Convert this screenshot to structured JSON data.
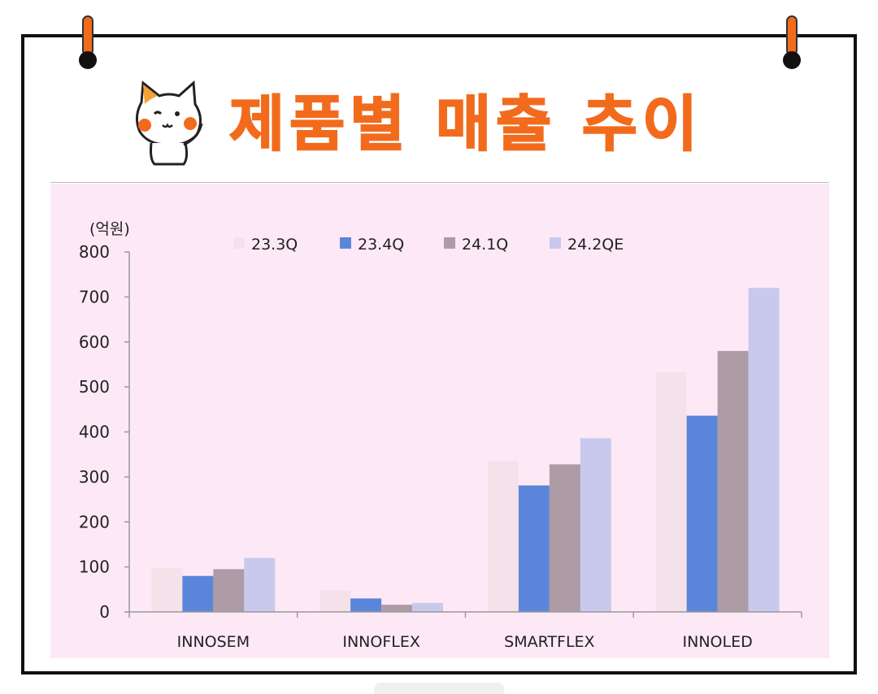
{
  "title": "제품별 매출 추이",
  "chart_data": {
    "type": "bar",
    "unit_label": "(억원)",
    "categories": [
      "INNOSEM",
      "INNOFLEX",
      "SMARTFLEX",
      "INNOLED"
    ],
    "series": [
      {
        "name": "23.3Q",
        "color": "#f5e1ea",
        "values": [
          98,
          48,
          335,
          532
        ]
      },
      {
        "name": "23.4Q",
        "color": "#5b85db",
        "values": [
          80,
          30,
          281,
          436
        ]
      },
      {
        "name": "24.1Q",
        "color": "#ad9ba6",
        "values": [
          95,
          16,
          328,
          580
        ]
      },
      {
        "name": "24.2QE",
        "color": "#c9c9ee",
        "values": [
          120,
          20,
          386,
          720
        ]
      }
    ],
    "ylim": [
      0,
      800
    ],
    "yticks": [
      0,
      100,
      200,
      300,
      400,
      500,
      600,
      700,
      800
    ],
    "legend_position": "top",
    "grid": false
  },
  "colors": {
    "title": "#f26b1d",
    "chart_background": "#fde9f6",
    "pin": "#f26b1d"
  }
}
